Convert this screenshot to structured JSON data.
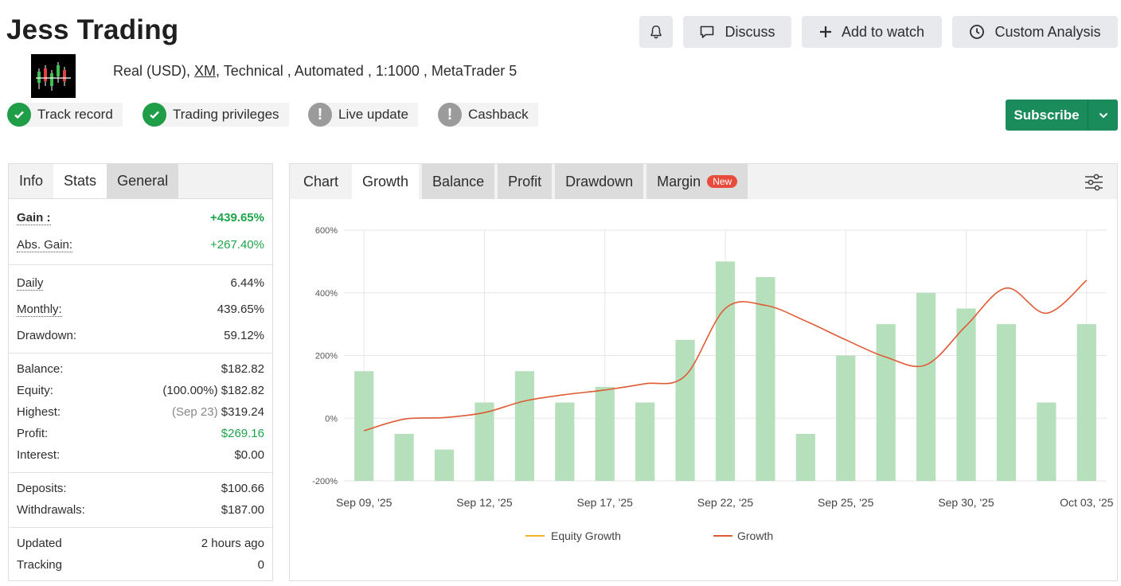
{
  "header": {
    "title": "Jess Trading",
    "buttons": {
      "notify_icon": "bell-icon",
      "discuss": "Discuss",
      "add_to_watch": "Add to watch",
      "custom_analysis": "Custom Analysis"
    }
  },
  "account": {
    "type": "Real (USD),",
    "broker": "XM",
    "details": ", Technical , Automated , 1:1000 , MetaTrader 5"
  },
  "badges": [
    {
      "label": "Track record",
      "status": "ok"
    },
    {
      "label": "Trading privileges",
      "status": "ok"
    },
    {
      "label": "Live update",
      "status": "warn"
    },
    {
      "label": "Cashback",
      "status": "warn"
    }
  ],
  "subscribe": {
    "label": "Subscribe",
    "color": "#1a8c5c"
  },
  "left_panel": {
    "tabs": [
      "Info",
      "Stats",
      "General"
    ],
    "rows": {
      "gain": {
        "label": "Gain :",
        "value": "+439.65%"
      },
      "abs_gain": {
        "label": "Abs. Gain:",
        "value": "+267.40%"
      },
      "daily": {
        "label": "Daily",
        "value": "6.44%"
      },
      "monthly": {
        "label": "Monthly:",
        "value": "439.65%"
      },
      "drawdown": {
        "label": "Drawdown:",
        "value": "59.12%"
      },
      "balance": {
        "label": "Balance:",
        "value": "$182.82"
      },
      "equity": {
        "label": "Equity:",
        "note": "(100.00%)",
        "value": "$182.82"
      },
      "highest": {
        "label": "Highest:",
        "note": "(Sep 23)",
        "value": "$319.24"
      },
      "profit": {
        "label": "Profit:",
        "value": "$269.16"
      },
      "interest": {
        "label": "Interest:",
        "value": "$0.00"
      },
      "deposits": {
        "label": "Deposits:",
        "value": "$100.66"
      },
      "withdrawals": {
        "label": "Withdrawals:",
        "value": "$187.00"
      },
      "updated": {
        "label": "Updated",
        "value": "2 hours ago"
      },
      "tracking": {
        "label": "Tracking",
        "value": "0"
      }
    }
  },
  "chart_panel": {
    "tabs": [
      "Chart",
      "Growth",
      "Balance",
      "Profit",
      "Drawdown",
      "Margin"
    ],
    "new_badge": "New",
    "settings_icon": "sliders-icon"
  },
  "chart_data": {
    "type": "bar",
    "ylim": [
      -200,
      600
    ],
    "yticks": [
      "600%",
      "400%",
      "200%",
      "0%",
      "-200%"
    ],
    "ytick_values": [
      600,
      400,
      200,
      0,
      -200
    ],
    "xtick_labels": [
      "Sep 09, '25",
      "Sep 12, '25",
      "Sep 17, '25",
      "Sep 22, '25",
      "Sep 25, '25",
      "Sep 30, '25",
      "Oct 03, '25"
    ],
    "xtick_positions": [
      0,
      3,
      6,
      9,
      12,
      15,
      18
    ],
    "bars": [
      150,
      -50,
      -100,
      50,
      150,
      50,
      100,
      50,
      250,
      500,
      450,
      -50,
      200,
      300,
      400,
      350,
      300,
      50,
      300
    ],
    "growth_line": [
      -40,
      -3,
      2,
      18,
      55,
      75,
      90,
      110,
      135,
      350,
      360,
      310,
      250,
      195,
      170,
      295,
      415,
      335,
      440
    ],
    "legend": [
      "Equity Growth",
      "Growth"
    ],
    "colors": {
      "bars": "#b6dfbc",
      "growth": "#e05a33",
      "equity": "#f0b429",
      "grid": "#e6e6e6"
    }
  }
}
